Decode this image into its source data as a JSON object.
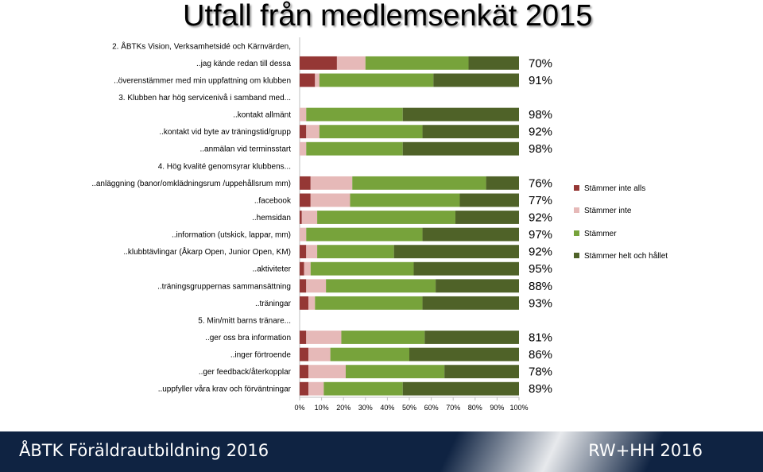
{
  "slide": {
    "title": "Utfall från medlemsenkät 2015",
    "footer_left": "ÅBTK Föräldrautbildning 2016",
    "footer_right": "RW+HH 2016"
  },
  "chart_data": {
    "type": "bar",
    "orientation": "horizontal",
    "stacked": "percent",
    "xlim": [
      0,
      100
    ],
    "x_ticks": [
      "0%",
      "10%",
      "20%",
      "30%",
      "40%",
      "50%",
      "60%",
      "70%",
      "80%",
      "90%",
      "100%"
    ],
    "legend_position": "right",
    "series": [
      {
        "name": "Stämmer inte alls",
        "color": "#953735"
      },
      {
        "name": "Stämmer inte",
        "color": "#e6b9b8"
      },
      {
        "name": "Stämmer",
        "color": "#77a33b"
      },
      {
        "name": "Stämmer helt och hållet",
        "color": "#4f6228"
      }
    ],
    "rows": [
      {
        "label": "2. ÅBTKs Vision, Verksamhetsidé och Kärnvärden,",
        "header": true
      },
      {
        "label": "..jag kände redan till dessa",
        "values": [
          17,
          13,
          47,
          23
        ],
        "pct": "70%"
      },
      {
        "label": "..överenstämmer med min uppfattning om klubben",
        "values": [
          7,
          2,
          52,
          39
        ],
        "pct": "91%"
      },
      {
        "label": "3. Klubben har hög servicenivå i samband med...",
        "header": true
      },
      {
        "label": "..kontakt allmänt",
        "values": [
          0,
          3,
          44,
          53
        ],
        "pct": "98%"
      },
      {
        "label": "..kontakt vid byte av träningstid/grupp",
        "values": [
          3,
          6,
          47,
          44
        ],
        "pct": "92%"
      },
      {
        "label": "..anmälan vid terminsstart",
        "values": [
          0,
          3,
          44,
          53
        ],
        "pct": "98%"
      },
      {
        "label": "4. Hög kvalité genomsyrar klubbens...",
        "header": true
      },
      {
        "label": "..anläggning (banor/omklädningsrum /uppehållsrum mm)",
        "values": [
          5,
          19,
          61,
          15
        ],
        "pct": "76%"
      },
      {
        "label": "..facebook",
        "values": [
          5,
          18,
          50,
          27
        ],
        "pct": "77%"
      },
      {
        "label": "..hemsidan",
        "values": [
          1,
          7,
          63,
          29
        ],
        "pct": "92%"
      },
      {
        "label": "..information (utskick, lappar, mm)",
        "values": [
          0,
          3,
          53,
          44
        ],
        "pct": "97%"
      },
      {
        "label": "..klubbtävlingar (Åkarp Open, Junior Open, KM)",
        "values": [
          3,
          5,
          35,
          57
        ],
        "pct": "92%"
      },
      {
        "label": "..aktiviteter",
        "values": [
          2,
          3,
          47,
          48
        ],
        "pct": "95%"
      },
      {
        "label": "..träningsgruppernas sammansättning",
        "values": [
          3,
          9,
          50,
          38
        ],
        "pct": "88%"
      },
      {
        "label": "..träningar",
        "values": [
          4,
          3,
          49,
          44
        ],
        "pct": "93%"
      },
      {
        "label": "5. Min/mitt barns tränare...",
        "header": true
      },
      {
        "label": "..ger oss bra information",
        "values": [
          3,
          16,
          38,
          43
        ],
        "pct": "81%"
      },
      {
        "label": "..inger förtroende",
        "values": [
          4,
          10,
          36,
          50
        ],
        "pct": "86%"
      },
      {
        "label": "..ger feedback/återkopplar",
        "values": [
          4,
          17,
          45,
          34
        ],
        "pct": "78%"
      },
      {
        "label": "..uppfyller våra krav och förväntningar",
        "values": [
          4,
          7,
          36,
          53
        ],
        "pct": "89%"
      }
    ]
  }
}
